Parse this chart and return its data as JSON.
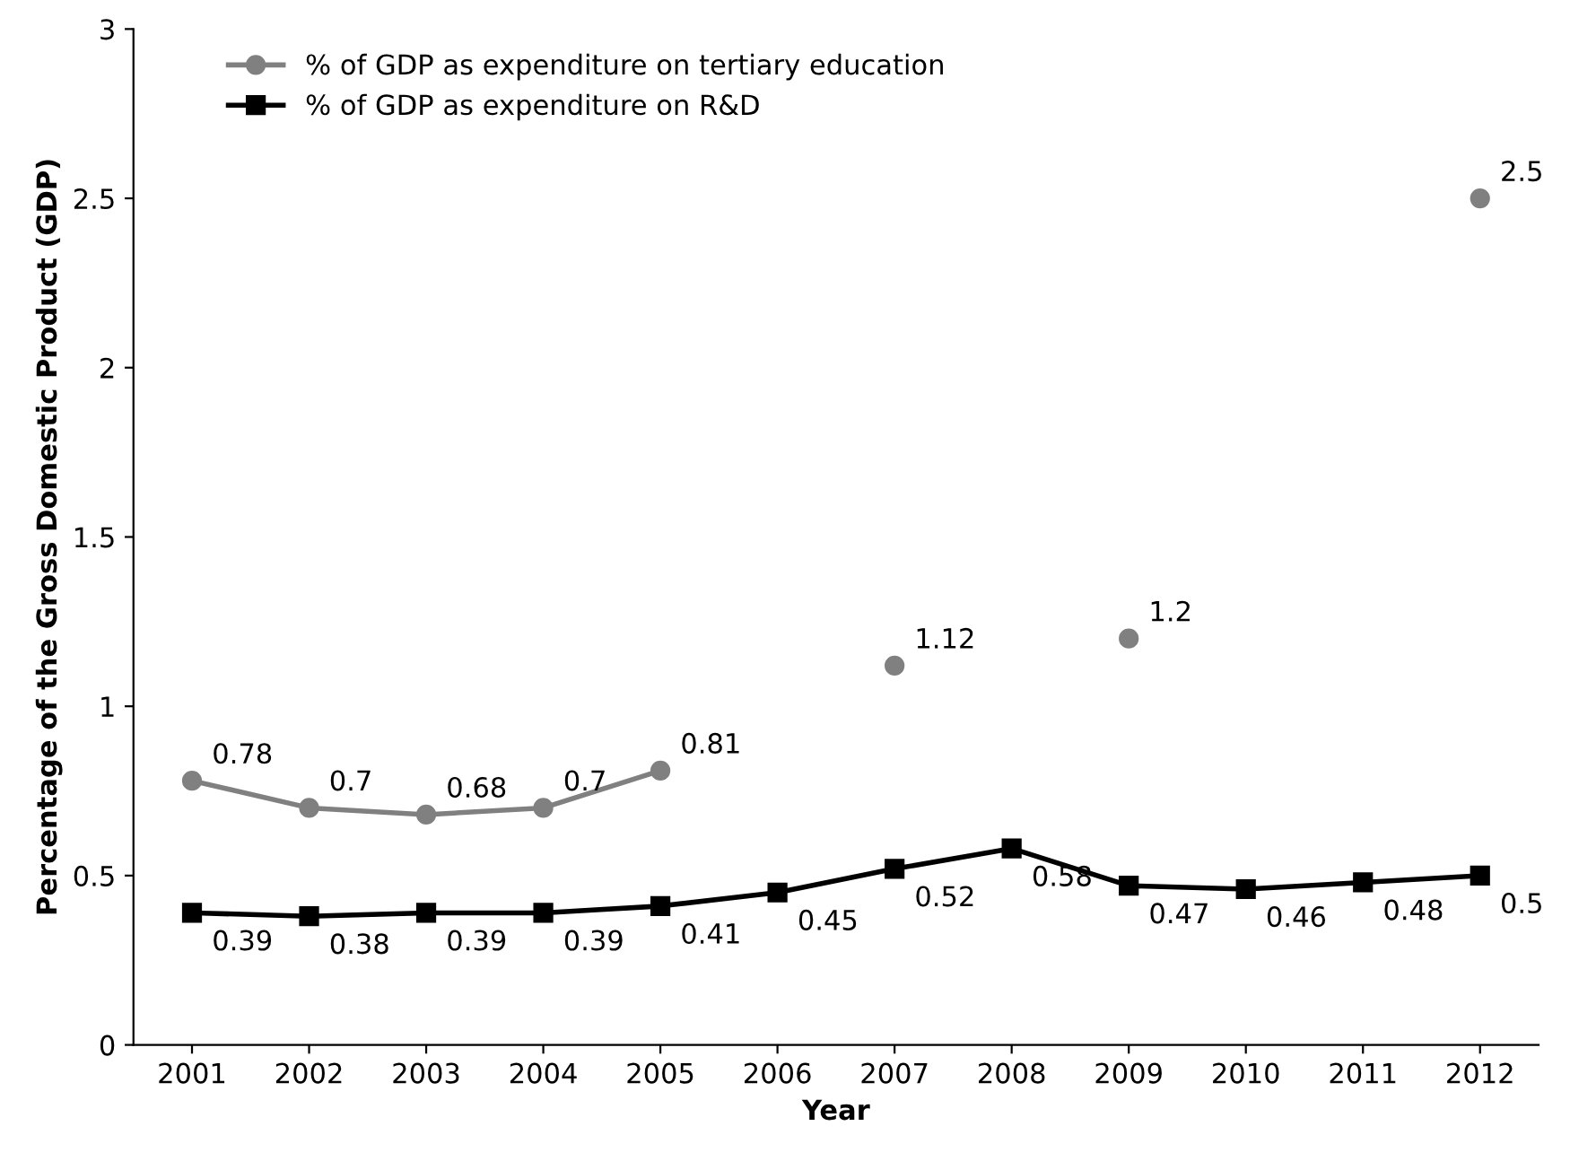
{
  "chart_data": {
    "type": "line",
    "xlabel": "Year",
    "ylabel": "Percentage of the Gross Domestic Product (GDP)",
    "categories": [
      "2001",
      "2002",
      "2003",
      "2004",
      "2005",
      "2006",
      "2007",
      "2008",
      "2009",
      "2010",
      "2011",
      "2012"
    ],
    "series": [
      {
        "name": "% of GDP as expenditure on tertiary education",
        "color": "#808080",
        "marker": "circle",
        "values": [
          0.78,
          0.7,
          0.68,
          0.7,
          0.81,
          null,
          1.12,
          null,
          1.2,
          null,
          null,
          2.5
        ]
      },
      {
        "name": "% of GDP as expenditure on R&D",
        "color": "#000000",
        "marker": "square",
        "values": [
          0.39,
          0.38,
          0.39,
          0.39,
          0.41,
          0.45,
          0.52,
          0.58,
          0.47,
          0.46,
          0.48,
          0.5
        ]
      }
    ],
    "ylim": [
      0,
      3
    ],
    "yticks": [
      0,
      0.5,
      1,
      1.5,
      2,
      2.5,
      3
    ],
    "data_labels": true,
    "legend": "top left",
    "grid": false,
    "line_style": "solid"
  }
}
